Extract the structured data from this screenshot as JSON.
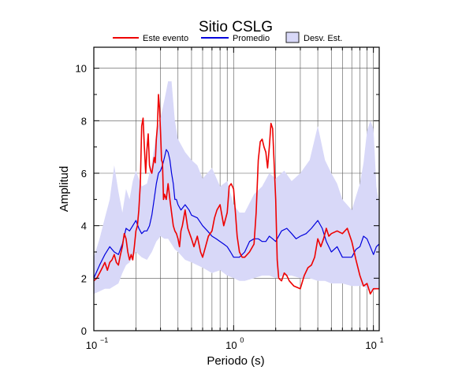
{
  "chart_data": {
    "type": "line",
    "title": "Sitio CSLG",
    "xlabel": "Periodo (s)",
    "ylabel": "Amplitud",
    "xscale": "log",
    "xlim": [
      0.1,
      11
    ],
    "ylim": [
      0,
      10.8
    ],
    "grid": true,
    "legend_position": "top",
    "x_ticks": [
      {
        "base": "10",
        "exp": "−1"
      },
      {
        "base": "10",
        "exp": "0"
      },
      {
        "base": "10",
        "exp": "1"
      }
    ],
    "y_ticks": [
      "0",
      "2",
      "4",
      "6",
      "8",
      "10"
    ],
    "legend": {
      "event": "Este evento",
      "mean": "Promedio",
      "band": "Desv. Est."
    },
    "colors": {
      "event": "#ee0000",
      "mean": "#0000dd",
      "band_fill": "#d8d8f8",
      "band_edge": "#222222"
    },
    "series": [
      {
        "name": "Este evento",
        "x": [
          0.1,
          0.105,
          0.11,
          0.115,
          0.12,
          0.125,
          0.13,
          0.135,
          0.14,
          0.145,
          0.15,
          0.155,
          0.16,
          0.165,
          0.17,
          0.175,
          0.18,
          0.185,
          0.19,
          0.195,
          0.2,
          0.205,
          0.21,
          0.215,
          0.22,
          0.225,
          0.23,
          0.235,
          0.24,
          0.245,
          0.25,
          0.255,
          0.26,
          0.265,
          0.27,
          0.275,
          0.28,
          0.285,
          0.29,
          0.295,
          0.3,
          0.305,
          0.31,
          0.315,
          0.32,
          0.33,
          0.34,
          0.35,
          0.36,
          0.37,
          0.38,
          0.39,
          0.4,
          0.41,
          0.42,
          0.43,
          0.45,
          0.47,
          0.5,
          0.52,
          0.55,
          0.58,
          0.6,
          0.63,
          0.66,
          0.7,
          0.73,
          0.76,
          0.8,
          0.85,
          0.9,
          0.93,
          0.96,
          1.0,
          1.03,
          1.06,
          1.1,
          1.15,
          1.2,
          1.3,
          1.4,
          1.45,
          1.5,
          1.55,
          1.6,
          1.65,
          1.7,
          1.75,
          1.8,
          1.85,
          1.9,
          2.0,
          2.05,
          2.1,
          2.2,
          2.3,
          2.4,
          2.5,
          2.7,
          3.0,
          3.2,
          3.4,
          3.6,
          3.8,
          4.0,
          4.2,
          4.4,
          4.6,
          4.8,
          5.0,
          5.5,
          6.0,
          6.5,
          7.0,
          7.5,
          8.0,
          8.5,
          9.0,
          9.5,
          10.0,
          10.5,
          11.0
        ],
        "values": [
          1.9,
          2.0,
          2.2,
          2.4,
          2.6,
          2.3,
          2.6,
          2.7,
          2.9,
          2.6,
          2.5,
          2.9,
          3.2,
          3.7,
          3.5,
          3.0,
          2.7,
          2.9,
          2.7,
          3.2,
          3.8,
          4.0,
          4.6,
          5.6,
          7.8,
          8.1,
          7.0,
          6.0,
          6.9,
          7.5,
          6.3,
          6.1,
          6.0,
          6.3,
          6.6,
          6.4,
          7.3,
          7.8,
          9.0,
          8.5,
          7.6,
          6.5,
          6.4,
          5.0,
          5.2,
          5.0,
          5.6,
          5.0,
          4.5,
          4.0,
          3.8,
          3.7,
          3.5,
          3.2,
          3.8,
          4.0,
          4.6,
          3.9,
          3.5,
          3.2,
          3.6,
          3.0,
          2.8,
          3.2,
          3.6,
          3.8,
          4.3,
          4.6,
          4.8,
          4.0,
          4.5,
          5.5,
          5.6,
          5.4,
          4.5,
          3.6,
          3.0,
          2.8,
          2.8,
          3.0,
          3.3,
          4.5,
          6.5,
          7.2,
          7.3,
          7.0,
          6.8,
          6.2,
          7.0,
          7.9,
          7.7,
          5.0,
          2.7,
          2.0,
          1.9,
          2.2,
          2.1,
          1.9,
          1.7,
          1.6,
          2.1,
          2.4,
          2.5,
          2.8,
          3.5,
          3.2,
          3.5,
          3.9,
          3.6,
          3.7,
          3.8,
          3.7,
          3.9,
          3.4,
          2.7,
          2.1,
          1.7,
          1.8,
          1.4,
          1.6,
          1.6,
          1.6
        ]
      },
      {
        "name": "Promedio",
        "x": [
          0.1,
          0.11,
          0.12,
          0.13,
          0.14,
          0.15,
          0.16,
          0.17,
          0.18,
          0.19,
          0.2,
          0.21,
          0.22,
          0.23,
          0.24,
          0.25,
          0.26,
          0.27,
          0.28,
          0.29,
          0.3,
          0.31,
          0.32,
          0.33,
          0.34,
          0.35,
          0.36,
          0.37,
          0.38,
          0.39,
          0.4,
          0.42,
          0.45,
          0.48,
          0.5,
          0.55,
          0.6,
          0.65,
          0.7,
          0.75,
          0.8,
          0.85,
          0.9,
          0.95,
          1.0,
          1.05,
          1.1,
          1.2,
          1.3,
          1.4,
          1.5,
          1.6,
          1.7,
          1.8,
          1.9,
          2.0,
          2.2,
          2.4,
          2.6,
          2.8,
          3.0,
          3.3,
          3.6,
          4.0,
          4.3,
          4.6,
          5.0,
          5.5,
          6.0,
          6.5,
          7.0,
          7.5,
          8.0,
          8.5,
          9.0,
          9.5,
          10.0,
          10.5,
          11.0
        ],
        "values": [
          2.0,
          2.5,
          2.9,
          3.2,
          3.0,
          2.9,
          3.3,
          3.9,
          3.8,
          4.0,
          4.2,
          3.9,
          3.7,
          3.8,
          3.8,
          4.0,
          4.4,
          5.0,
          5.6,
          6.0,
          6.1,
          6.3,
          6.6,
          6.9,
          6.8,
          6.5,
          6.0,
          5.6,
          5.0,
          5.0,
          4.8,
          4.6,
          4.8,
          4.6,
          4.4,
          4.3,
          4.0,
          3.8,
          3.6,
          3.5,
          3.4,
          3.3,
          3.2,
          3.0,
          2.8,
          2.8,
          2.8,
          3.0,
          3.4,
          3.5,
          3.5,
          3.4,
          3.4,
          3.6,
          3.5,
          3.4,
          3.8,
          3.9,
          3.7,
          3.5,
          3.6,
          3.7,
          3.9,
          4.2,
          3.9,
          3.4,
          3.0,
          3.2,
          2.8,
          2.8,
          2.8,
          3.1,
          3.2,
          3.6,
          3.5,
          3.2,
          2.9,
          3.2,
          3.3
        ]
      },
      {
        "name": "Desv. Est.",
        "x": [
          0.1,
          0.11,
          0.12,
          0.13,
          0.14,
          0.15,
          0.16,
          0.17,
          0.18,
          0.19,
          0.2,
          0.22,
          0.24,
          0.26,
          0.28,
          0.3,
          0.32,
          0.34,
          0.36,
          0.38,
          0.4,
          0.45,
          0.5,
          0.55,
          0.6,
          0.7,
          0.8,
          0.9,
          1.0,
          1.1,
          1.2,
          1.4,
          1.6,
          1.8,
          2.0,
          2.3,
          2.6,
          3.0,
          3.5,
          4.0,
          4.5,
          5.0,
          5.5,
          6.0,
          7.0,
          8.0,
          8.5,
          9.0,
          9.5,
          10.0,
          10.5,
          11.0
        ],
        "upper": [
          2.8,
          3.5,
          4.3,
          5.0,
          6.3,
          5.3,
          4.5,
          5.4,
          5.0,
          5.7,
          6.1,
          5.5,
          5.6,
          6.4,
          7.5,
          8.1,
          8.8,
          9.5,
          9.5,
          8.0,
          7.3,
          6.8,
          6.5,
          6.3,
          5.8,
          6.2,
          5.5,
          5.7,
          4.8,
          4.5,
          4.5,
          5.2,
          5.5,
          6.0,
          5.8,
          6.1,
          5.7,
          6.0,
          6.5,
          7.8,
          6.5,
          6.0,
          5.6,
          5.0,
          4.6,
          5.6,
          6.4,
          7.6,
          8.0,
          7.7,
          5.5,
          4.8
        ],
        "lower": [
          1.4,
          1.5,
          1.6,
          1.6,
          1.7,
          1.8,
          2.2,
          2.5,
          2.6,
          2.8,
          3.0,
          2.8,
          2.7,
          3.0,
          3.4,
          3.6,
          3.5,
          3.5,
          3.3,
          3.1,
          3.0,
          2.7,
          2.6,
          2.5,
          2.4,
          2.2,
          2.3,
          2.1,
          2.0,
          1.9,
          1.9,
          2.0,
          2.1,
          2.1,
          2.0,
          2.1,
          2.1,
          2.0,
          2.0,
          1.9,
          1.9,
          1.8,
          1.8,
          1.8,
          1.7,
          1.7,
          1.7,
          1.6,
          1.5,
          1.5,
          1.6,
          1.6
        ]
      }
    ]
  }
}
